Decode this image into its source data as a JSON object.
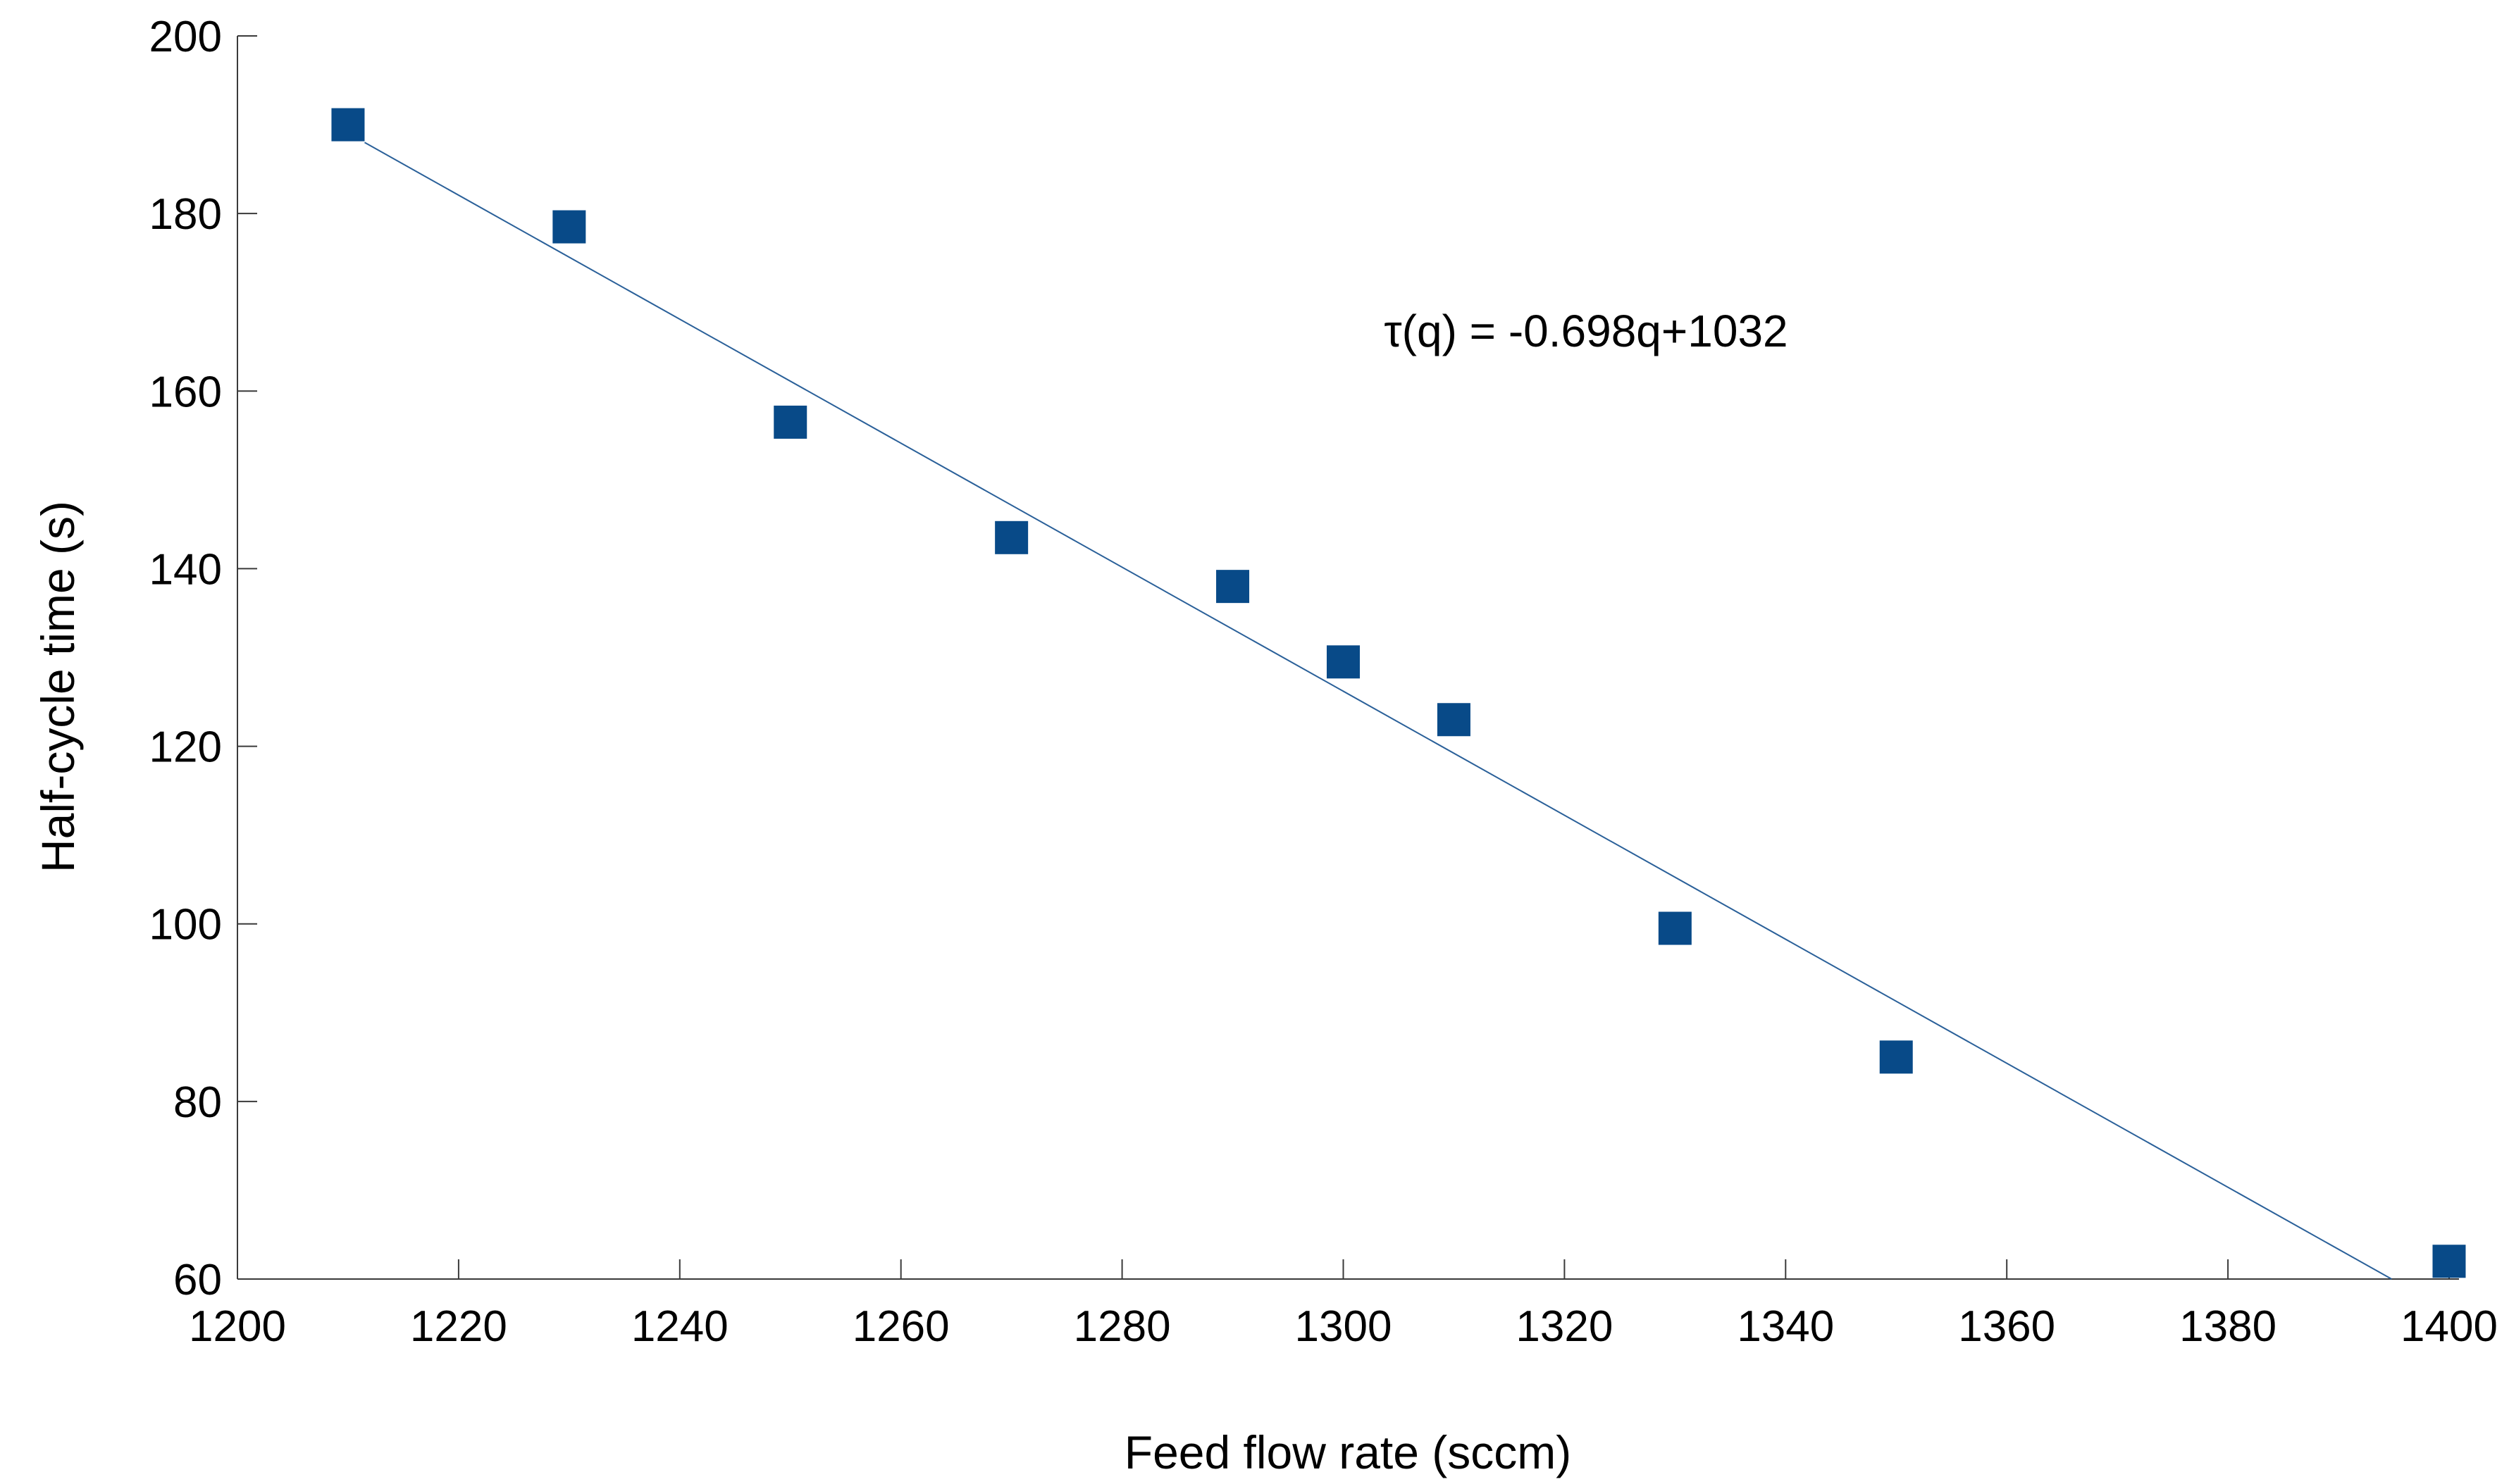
{
  "chart_data": {
    "type": "scatter",
    "title": "",
    "xlabel": "Feed flow rate (sccm)",
    "ylabel": "Half-cycle time (s)",
    "annotation": "τ(q) = -0.698q+1032",
    "points": [
      [
        1210,
        190
      ],
      [
        1230,
        178.5
      ],
      [
        1250,
        156.5
      ],
      [
        1270,
        143.5
      ],
      [
        1290,
        138
      ],
      [
        1300,
        129.5
      ],
      [
        1310,
        123
      ],
      [
        1330,
        99.5
      ],
      [
        1350,
        85
      ],
      [
        1400,
        62
      ]
    ],
    "xlim": [
      1200,
      1400
    ],
    "ylim": [
      60,
      200
    ],
    "x_ticks": [
      1200,
      1220,
      1240,
      1260,
      1280,
      1300,
      1320,
      1340,
      1360,
      1380,
      1400
    ],
    "y_ticks": [
      60,
      80,
      100,
      120,
      140,
      160,
      180,
      200
    ],
    "trendline": {
      "slope": -0.698,
      "intercept": 1032,
      "x1": 1211.5,
      "y1": 188,
      "x2": 1394.8,
      "y2": 60
    },
    "grid": false,
    "legend": null,
    "colors": {
      "marker": "#084a88",
      "trendline": "#2a6099",
      "axis": "#3a3a3a",
      "text": "#000000",
      "background": "#ffffff"
    }
  }
}
